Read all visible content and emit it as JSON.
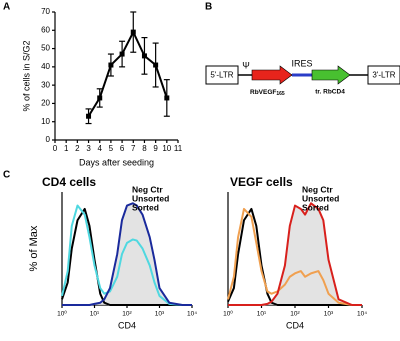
{
  "panel_labels": [
    "A",
    "B",
    "C"
  ],
  "chart_data": [
    {
      "type": "line",
      "xlabel": "Days after seeding",
      "ylabel": "% of cells in S/G2",
      "x": [
        3,
        4,
        5,
        6,
        7,
        8,
        9,
        10
      ],
      "values": [
        13,
        23,
        41,
        47,
        59,
        46,
        41,
        23
      ],
      "errors": [
        4,
        5,
        6,
        7,
        11,
        10,
        12,
        10
      ],
      "color": "#000000",
      "xlim": [
        0,
        11
      ],
      "xticks": [
        0,
        1,
        2,
        3,
        4,
        5,
        6,
        7,
        8,
        9,
        10,
        11
      ],
      "ylim": [
        0,
        70
      ],
      "yticks": [
        0,
        10,
        20,
        30,
        40,
        50,
        60,
        70
      ]
    },
    {
      "type": "histogram-overlay",
      "title": "CD4 cells",
      "xlabel": "CD4",
      "ylabel": "% of Max",
      "xscale": "log",
      "legend": "top-right",
      "x": [
        1,
        1.5,
        2,
        3,
        5,
        7,
        10,
        15,
        20,
        30,
        50,
        70,
        100,
        150,
        200,
        300,
        500,
        700,
        1000,
        2000,
        5000,
        10000
      ],
      "series": [
        {
          "name": "Neg Ctr",
          "color": "#000000",
          "values": [
            5,
            20,
            50,
            75,
            85,
            70,
            40,
            10,
            2,
            0,
            0,
            0,
            0,
            0,
            0,
            0,
            0,
            0,
            0,
            0,
            0,
            0
          ]
        },
        {
          "name": "Unsorted",
          "color": "#4fd8e0",
          "values": [
            8,
            30,
            70,
            88,
            80,
            60,
            35,
            15,
            10,
            12,
            25,
            45,
            55,
            58,
            57,
            50,
            35,
            20,
            8,
            1,
            0,
            0
          ]
        },
        {
          "name": "Sorted",
          "color": "#1a2a9c",
          "fill": "#dcdcdc",
          "values": [
            0,
            0,
            0,
            0,
            0,
            0,
            1,
            2,
            5,
            15,
            45,
            75,
            88,
            90,
            88,
            80,
            60,
            40,
            15,
            2,
            0,
            0
          ]
        }
      ],
      "xlim": [
        1,
        10000
      ],
      "xticks": [
        {
          "value": 1,
          "label": "10⁰"
        },
        {
          "value": 10,
          "label": "10¹"
        },
        {
          "value": 100,
          "label": "10²"
        },
        {
          "value": 1000,
          "label": "10³"
        },
        {
          "value": 10000,
          "label": "10⁴"
        }
      ],
      "ylim": [
        0,
        100
      ]
    },
    {
      "type": "histogram-overlay",
      "title": "VEGF cells",
      "xlabel": "CD4",
      "xscale": "log",
      "legend": "top-right",
      "x": [
        1,
        1.5,
        2,
        3,
        5,
        7,
        10,
        15,
        20,
        30,
        50,
        70,
        100,
        150,
        200,
        300,
        500,
        700,
        1000,
        2000,
        5000,
        10000
      ],
      "series": [
        {
          "name": "Neg Ctr",
          "color": "#000000",
          "values": [
            3,
            15,
            45,
            75,
            85,
            70,
            35,
            10,
            2,
            0,
            0,
            0,
            0,
            0,
            0,
            0,
            0,
            0,
            0,
            0,
            0,
            0
          ]
        },
        {
          "name": "Unsorted",
          "color": "#f0a050",
          "values": [
            5,
            25,
            60,
            85,
            78,
            55,
            30,
            12,
            10,
            12,
            18,
            25,
            28,
            30,
            25,
            28,
            30,
            22,
            10,
            2,
            0,
            0
          ]
        },
        {
          "name": "Sorted",
          "color": "#d8201c",
          "fill": "#dcdcdc",
          "values": [
            0,
            0,
            0,
            0,
            0,
            0,
            0,
            1,
            3,
            10,
            35,
            70,
            88,
            85,
            80,
            90,
            85,
            75,
            40,
            5,
            0,
            0
          ]
        }
      ],
      "xlim": [
        1,
        10000
      ],
      "xticks": [
        {
          "value": 1,
          "label": "10⁰"
        },
        {
          "value": 10,
          "label": "10¹"
        },
        {
          "value": 100,
          "label": "10²"
        },
        {
          "value": 1000,
          "label": "10³"
        },
        {
          "value": 10000,
          "label": "10⁴"
        }
      ],
      "ylim": [
        0,
        100
      ]
    }
  ],
  "diagram": {
    "left_ltr": "5'-LTR",
    "psi": "Ψ",
    "ires": "IRES",
    "gene1": "RbVEGF",
    "gene1_sub": "165",
    "gene2": "tr. RbCD4",
    "right_ltr": "3'-LTR"
  }
}
